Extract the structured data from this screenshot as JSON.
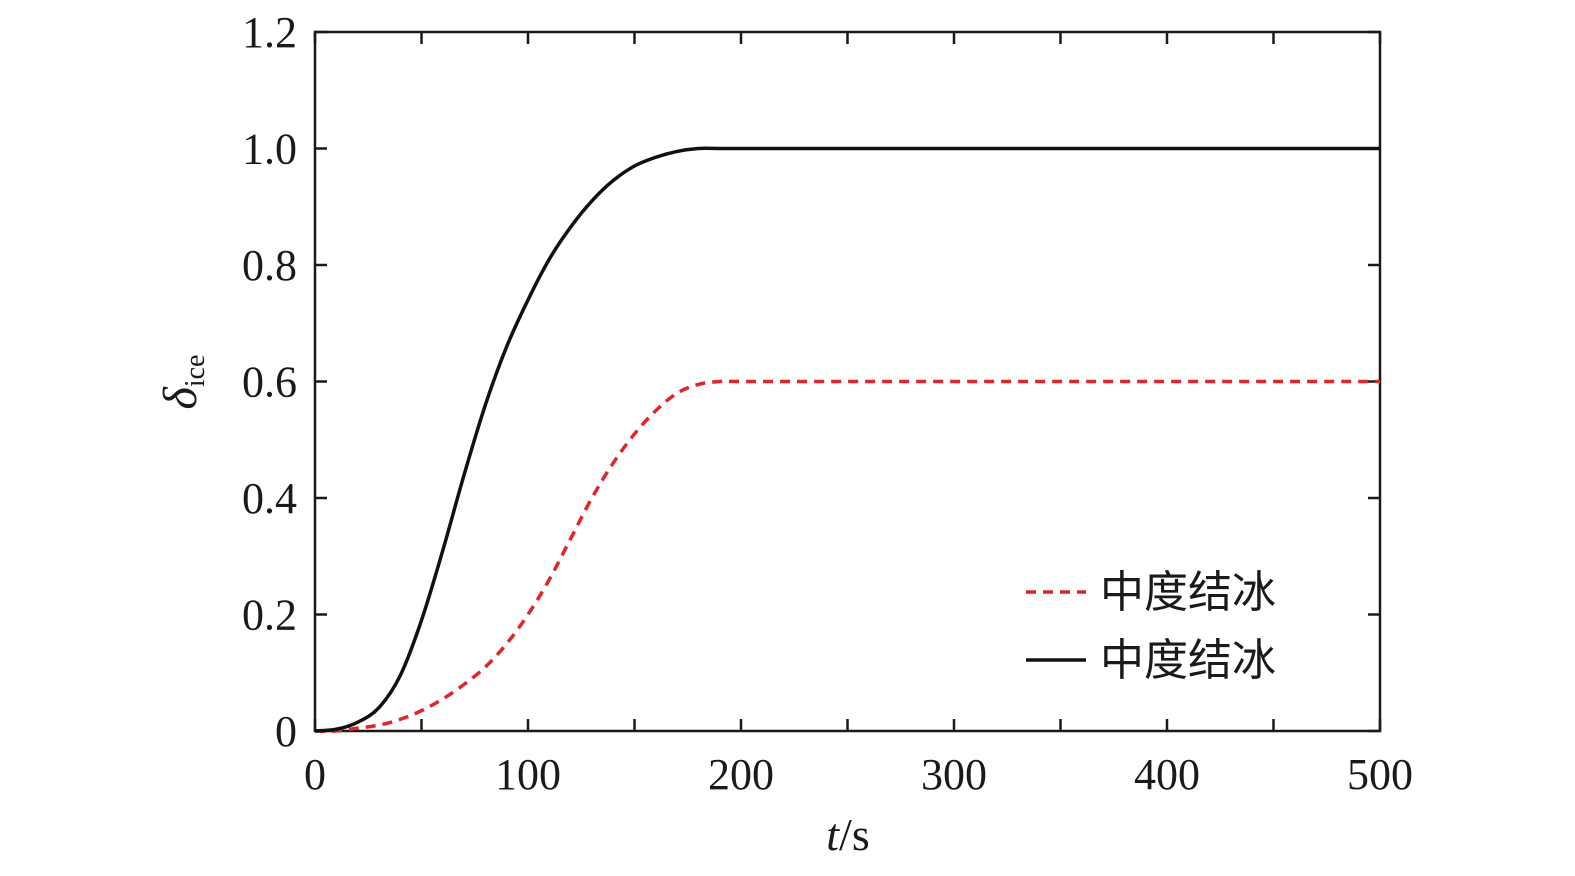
{
  "chart_data": {
    "type": "line",
    "title": "",
    "xlabel": {
      "var": "t",
      "unit": "/s"
    },
    "ylabel": {
      "var": "δ",
      "sub": "ice"
    },
    "xlim": [
      0,
      500
    ],
    "ylim": [
      0,
      1.2
    ],
    "xticks": [
      0,
      100,
      200,
      300,
      400,
      500
    ],
    "xtick_labels": [
      "0",
      "100",
      "200",
      "300",
      "400",
      "500"
    ],
    "yticks": [
      0,
      0.2,
      0.4,
      0.6,
      0.8,
      1.0,
      1.2
    ],
    "ytick_labels": [
      "0",
      "0.2",
      "0.4",
      "0.6",
      "0.8",
      "1.0",
      "1.2"
    ],
    "grid": false,
    "legend_position": "bottom-right",
    "series": [
      {
        "name": "中度结冰",
        "color": "#e0262b",
        "style": "dashed",
        "x": [
          0,
          10,
          20,
          30,
          40,
          50,
          60,
          70,
          80,
          90,
          100,
          110,
          120,
          130,
          140,
          150,
          160,
          170,
          180,
          190,
          200,
          250,
          300,
          350,
          400,
          450,
          500
        ],
        "y": [
          0,
          0,
          0.005,
          0.01,
          0.02,
          0.035,
          0.055,
          0.08,
          0.11,
          0.15,
          0.2,
          0.26,
          0.33,
          0.4,
          0.46,
          0.51,
          0.55,
          0.58,
          0.595,
          0.6,
          0.6,
          0.6,
          0.6,
          0.6,
          0.6,
          0.6,
          0.6
        ]
      },
      {
        "name": "中度结冰",
        "color": "#111111",
        "style": "solid",
        "x": [
          0,
          10,
          20,
          30,
          40,
          50,
          60,
          70,
          80,
          90,
          100,
          110,
          120,
          130,
          140,
          150,
          160,
          170,
          180,
          190,
          200,
          250,
          300,
          350,
          400,
          450,
          500
        ],
        "y": [
          0,
          0.003,
          0.015,
          0.04,
          0.095,
          0.19,
          0.31,
          0.44,
          0.56,
          0.66,
          0.74,
          0.81,
          0.865,
          0.91,
          0.945,
          0.97,
          0.985,
          0.995,
          1.0,
          1.0,
          1.0,
          1.0,
          1.0,
          1.0,
          1.0,
          1.0,
          1.0
        ]
      }
    ]
  }
}
